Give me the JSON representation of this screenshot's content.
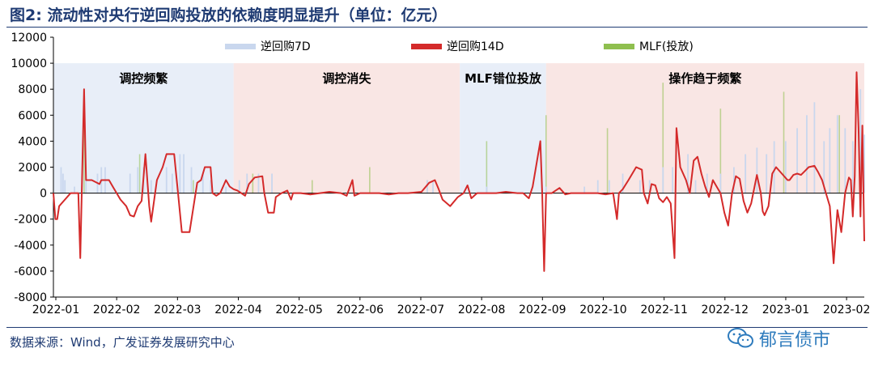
{
  "figure": {
    "title_prefix": "图2:",
    "title_text": "流动性对央行逆回购投放的依赖度明显提升（单位：亿元）",
    "source": "数据来源：Wind，广发证券发展研究中心",
    "watermark_text": "郁言债市"
  },
  "colors": {
    "title": "#1f3b73",
    "rr7d": "#c9d7ee",
    "rr14d": "#d42a2a",
    "mlf": "#8fbf4f",
    "bg_blue": "#e8eef8",
    "bg_pink": "#f9e6e4"
  },
  "chart_data": {
    "type": "bar+line",
    "title": "流动性对央行逆回购投放的依赖度明显提升（单位：亿元）",
    "ylim": [
      -8000,
      12000
    ],
    "y_ticks": [
      -8000,
      -6000,
      -4000,
      -2000,
      0,
      2000,
      4000,
      6000,
      8000,
      10000,
      12000
    ],
    "y_tick_labels": [
      "-8000",
      "-6000",
      "-4000",
      "-2000",
      "0",
      "2000",
      "4000",
      "6000",
      "8000",
      "10000",
      "12000"
    ],
    "x_range": [
      "2022-01-01",
      "2023-02-28"
    ],
    "x_tick_labels": [
      "2022-01",
      "2022-02",
      "2022-03",
      "2022-04",
      "2022-05",
      "2022-06",
      "2022-07",
      "2022-08",
      "2022-09",
      "2022-10",
      "2022-11",
      "2022-12",
      "2023-01",
      "2023-02"
    ],
    "legend": [
      "逆回购7D",
      "逆回购14D",
      "MLF(投放)"
    ],
    "legend_position": "top",
    "regions": [
      {
        "label": "调控频繁",
        "start": "2022-01-01",
        "end": "2022-04-05",
        "shade": "blue"
      },
      {
        "label": "调控消失",
        "start": "2022-04-05",
        "end": "2022-08-01",
        "shade": "pink"
      },
      {
        "label": "MLF错位投放",
        "start": "2022-08-01",
        "end": "2022-09-15",
        "shade": "blue"
      },
      {
        "label": "操作趋于频繁",
        "start": "2022-09-15",
        "end": "2023-02-28",
        "shade": "pink"
      }
    ],
    "series": [
      {
        "name": "逆回购14D",
        "type": "line",
        "points": [
          [
            "2022-01-01",
            0
          ],
          [
            "2022-01-02",
            -2000
          ],
          [
            "2022-01-03",
            -2000
          ],
          [
            "2022-01-04",
            -1000
          ],
          [
            "2022-01-07",
            -500
          ],
          [
            "2022-01-10",
            0
          ],
          [
            "2022-01-14",
            0
          ],
          [
            "2022-01-15",
            -5000
          ],
          [
            "2022-01-17",
            8000
          ],
          [
            "2022-01-18",
            1000
          ],
          [
            "2022-01-21",
            1000
          ],
          [
            "2022-01-25",
            700
          ],
          [
            "2022-01-26",
            1000
          ],
          [
            "2022-01-30",
            1000
          ],
          [
            "2022-02-01",
            500
          ],
          [
            "2022-02-05",
            -500
          ],
          [
            "2022-02-08",
            -1000
          ],
          [
            "2022-02-10",
            -1700
          ],
          [
            "2022-02-12",
            -1800
          ],
          [
            "2022-02-14",
            -1000
          ],
          [
            "2022-02-16",
            -600
          ],
          [
            "2022-02-18",
            3000
          ],
          [
            "2022-02-20",
            -1000
          ],
          [
            "2022-02-21",
            -2200
          ],
          [
            "2022-02-24",
            1000
          ],
          [
            "2022-02-27",
            2000
          ],
          [
            "2022-03-01",
            3000
          ],
          [
            "2022-03-05",
            3000
          ],
          [
            "2022-03-07",
            0
          ],
          [
            "2022-03-09",
            -3000
          ],
          [
            "2022-03-13",
            -3000
          ],
          [
            "2022-03-17",
            800
          ],
          [
            "2022-03-19",
            1000
          ],
          [
            "2022-03-21",
            2000
          ],
          [
            "2022-03-24",
            2000
          ],
          [
            "2022-03-25",
            0
          ],
          [
            "2022-03-27",
            -200
          ],
          [
            "2022-03-29",
            0
          ],
          [
            "2022-04-01",
            1000
          ],
          [
            "2022-04-03",
            500
          ],
          [
            "2022-04-05",
            300
          ],
          [
            "2022-04-07",
            200
          ],
          [
            "2022-04-09",
            0
          ],
          [
            "2022-04-11",
            -200
          ],
          [
            "2022-04-13",
            700
          ],
          [
            "2022-04-16",
            1200
          ],
          [
            "2022-04-20",
            1300
          ],
          [
            "2022-04-21",
            0
          ],
          [
            "2022-04-23",
            -1500
          ],
          [
            "2022-04-26",
            -1500
          ],
          [
            "2022-04-27",
            -300
          ],
          [
            "2022-04-30",
            0
          ],
          [
            "2022-05-03",
            200
          ],
          [
            "2022-05-05",
            -500
          ],
          [
            "2022-05-06",
            0
          ],
          [
            "2022-05-10",
            0
          ],
          [
            "2022-05-15",
            -100
          ],
          [
            "2022-05-20",
            0
          ],
          [
            "2022-05-25",
            100
          ],
          [
            "2022-05-31",
            0
          ],
          [
            "2022-06-03",
            -200
          ],
          [
            "2022-06-06",
            1000
          ],
          [
            "2022-06-07",
            -200
          ],
          [
            "2022-06-10",
            0
          ],
          [
            "2022-06-20",
            0
          ],
          [
            "2022-06-25",
            -100
          ],
          [
            "2022-06-30",
            0
          ],
          [
            "2022-07-05",
            0
          ],
          [
            "2022-07-12",
            100
          ],
          [
            "2022-07-16",
            800
          ],
          [
            "2022-07-19",
            1000
          ],
          [
            "2022-07-21",
            300
          ],
          [
            "2022-07-23",
            -500
          ],
          [
            "2022-07-27",
            -1000
          ],
          [
            "2022-07-31",
            -300
          ],
          [
            "2022-08-03",
            0
          ],
          [
            "2022-08-05",
            600
          ],
          [
            "2022-08-07",
            -400
          ],
          [
            "2022-08-10",
            0
          ],
          [
            "2022-08-15",
            0
          ],
          [
            "2022-08-20",
            0
          ],
          [
            "2022-08-25",
            100
          ],
          [
            "2022-08-31",
            0
          ],
          [
            "2022-09-03",
            0
          ],
          [
            "2022-09-06",
            -400
          ],
          [
            "2022-09-08",
            500
          ],
          [
            "2022-09-12",
            4000
          ],
          [
            "2022-09-13",
            0
          ],
          [
            "2022-09-14",
            -6000
          ],
          [
            "2022-09-15",
            0
          ],
          [
            "2022-09-18",
            0
          ],
          [
            "2022-09-22",
            400
          ],
          [
            "2022-09-25",
            -100
          ],
          [
            "2022-09-28",
            0
          ],
          [
            "2022-10-03",
            0
          ],
          [
            "2022-10-07",
            0
          ],
          [
            "2022-10-12",
            0
          ],
          [
            "2022-10-16",
            -100
          ],
          [
            "2022-10-20",
            0
          ],
          [
            "2022-10-22",
            -2000
          ],
          [
            "2022-10-23",
            0
          ],
          [
            "2022-10-25",
            300
          ],
          [
            "2022-10-28",
            1000
          ],
          [
            "2022-11-01",
            2000
          ],
          [
            "2022-11-04",
            1800
          ],
          [
            "2022-11-05",
            0
          ],
          [
            "2022-11-07",
            -800
          ],
          [
            "2022-11-09",
            700
          ],
          [
            "2022-11-11",
            600
          ],
          [
            "2022-11-13",
            -400
          ],
          [
            "2022-11-15",
            -700
          ],
          [
            "2022-11-17",
            -300
          ],
          [
            "2022-11-19",
            -800
          ],
          [
            "2022-11-21",
            -5000
          ],
          [
            "2022-11-22",
            5000
          ],
          [
            "2022-11-24",
            2000
          ],
          [
            "2022-11-27",
            1000
          ],
          [
            "2022-11-29",
            0
          ],
          [
            "2022-12-01",
            2500
          ],
          [
            "2022-12-03",
            2800
          ],
          [
            "2022-12-05",
            1500
          ],
          [
            "2022-12-07",
            500
          ],
          [
            "2022-12-09",
            -300
          ],
          [
            "2022-12-11",
            1000
          ],
          [
            "2022-12-13",
            500
          ],
          [
            "2022-12-15",
            0
          ],
          [
            "2022-12-17",
            -1500
          ],
          [
            "2022-12-19",
            -2500
          ],
          [
            "2022-12-21",
            0
          ],
          [
            "2022-12-23",
            1300
          ],
          [
            "2022-12-25",
            1100
          ],
          [
            "2022-12-27",
            -600
          ],
          [
            "2022-12-29",
            -1500
          ],
          [
            "2022-12-31",
            -800
          ],
          [
            "2023-01-03",
            1400
          ],
          [
            "2023-01-05",
            0
          ],
          [
            "2023-01-06",
            -1400
          ],
          [
            "2023-01-07",
            -1700
          ],
          [
            "2023-01-09",
            -1000
          ],
          [
            "2023-01-11",
            1500
          ],
          [
            "2023-01-13",
            2000
          ],
          [
            "2023-01-16",
            1500
          ],
          [
            "2023-01-19",
            1000
          ],
          [
            "2023-01-20",
            1000
          ],
          [
            "2023-01-22",
            1400
          ],
          [
            "2023-01-24",
            1500
          ],
          [
            "2023-01-26",
            1400
          ],
          [
            "2023-01-28",
            1700
          ],
          [
            "2023-01-30",
            2000
          ],
          [
            "2023-02-02",
            2100
          ],
          [
            "2023-02-04",
            1600
          ],
          [
            "2023-02-06",
            1000
          ],
          [
            "2023-02-08",
            0
          ],
          [
            "2023-02-10",
            -1000
          ],
          [
            "2023-02-12",
            -5400
          ],
          [
            "2023-02-14",
            -1300
          ],
          [
            "2023-02-16",
            -3000
          ],
          [
            "2023-02-18",
            0
          ],
          [
            "2023-02-20",
            1200
          ],
          [
            "2023-02-21",
            1000
          ],
          [
            "2023-02-22",
            -1800
          ],
          [
            "2023-02-23",
            1300
          ],
          [
            "2023-02-24",
            9300
          ],
          [
            "2023-02-25",
            5000
          ],
          [
            "2023-02-26",
            -1800
          ],
          [
            "2023-02-27",
            5200
          ],
          [
            "2023-02-28",
            -3700
          ]
        ]
      },
      {
        "name": "逆回购7D",
        "type": "bar",
        "points": [
          [
            "2022-01-05",
            2000
          ],
          [
            "2022-01-06",
            1500
          ],
          [
            "2022-01-07",
            1000
          ],
          [
            "2022-01-12",
            500
          ],
          [
            "2022-01-18",
            1000
          ],
          [
            "2022-01-24",
            1500
          ],
          [
            "2022-01-26",
            2000
          ],
          [
            "2022-01-28",
            2000
          ],
          [
            "2022-02-10",
            1500
          ],
          [
            "2022-02-14",
            2000
          ],
          [
            "2022-02-17",
            2000
          ],
          [
            "2022-02-21",
            1000
          ],
          [
            "2022-03-01",
            2000
          ],
          [
            "2022-03-04",
            1500
          ],
          [
            "2022-03-08",
            3000
          ],
          [
            "2022-03-10",
            3000
          ],
          [
            "2022-03-14",
            2000
          ],
          [
            "2022-03-20",
            1500
          ],
          [
            "2022-03-24",
            1000
          ],
          [
            "2022-04-01",
            500
          ],
          [
            "2022-04-08",
            1000
          ],
          [
            "2022-04-12",
            1500
          ],
          [
            "2022-04-18",
            1500
          ],
          [
            "2022-04-25",
            1500
          ],
          [
            "2022-07-15",
            1000
          ],
          [
            "2022-07-18",
            1000
          ],
          [
            "2022-08-15",
            500
          ],
          [
            "2022-09-15",
            500
          ],
          [
            "2022-10-05",
            500
          ],
          [
            "2022-10-12",
            1000
          ],
          [
            "2022-10-18",
            1000
          ],
          [
            "2022-10-25",
            1500
          ],
          [
            "2022-11-03",
            1000
          ],
          [
            "2022-11-08",
            1000
          ],
          [
            "2022-11-15",
            2000
          ],
          [
            "2022-11-20",
            2000
          ],
          [
            "2022-11-28",
            3000
          ],
          [
            "2022-12-02",
            1000
          ],
          [
            "2022-12-08",
            1500
          ],
          [
            "2022-12-15",
            1500
          ],
          [
            "2022-12-22",
            2000
          ],
          [
            "2022-12-28",
            3000
          ],
          [
            "2023-01-03",
            3500
          ],
          [
            "2023-01-08",
            3000
          ],
          [
            "2023-01-12",
            4000
          ],
          [
            "2023-01-18",
            4000
          ],
          [
            "2023-01-24",
            5000
          ],
          [
            "2023-01-29",
            6000
          ],
          [
            "2023-02-02",
            7000
          ],
          [
            "2023-02-07",
            4000
          ],
          [
            "2023-02-10",
            5000
          ],
          [
            "2023-02-14",
            6000
          ],
          [
            "2023-02-18",
            5000
          ],
          [
            "2023-02-22",
            4000
          ],
          [
            "2023-02-26",
            8000
          ],
          [
            "2023-02-28",
            4500
          ]
        ]
      },
      {
        "name": "MLF(投放)",
        "type": "bar",
        "points": [
          [
            "2022-01-17",
            7000
          ],
          [
            "2022-02-15",
            3000
          ],
          [
            "2022-03-15",
            1000
          ],
          [
            "2022-04-15",
            1500
          ],
          [
            "2022-05-16",
            1000
          ],
          [
            "2022-06-15",
            2000
          ],
          [
            "2022-07-15",
            1000
          ],
          [
            "2022-08-15",
            4000
          ],
          [
            "2022-09-15",
            6000
          ],
          [
            "2022-10-17",
            5000
          ],
          [
            "2022-11-15",
            8500
          ],
          [
            "2022-12-15",
            6500
          ],
          [
            "2023-01-17",
            7800
          ],
          [
            "2023-02-15",
            6000
          ]
        ]
      }
    ]
  }
}
